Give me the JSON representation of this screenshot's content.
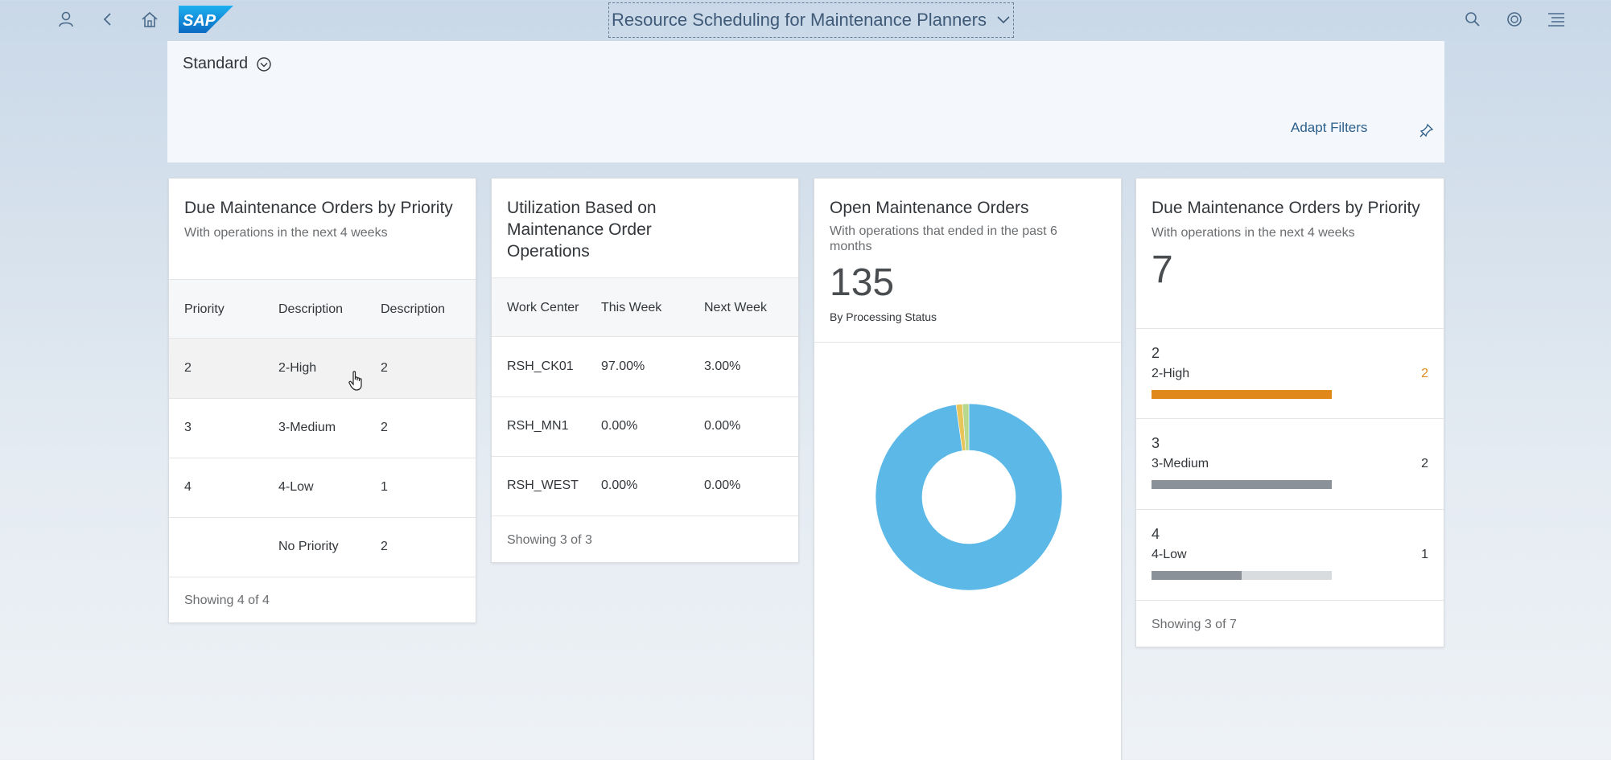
{
  "shell": {
    "title": "Resource Scheduling for Maintenance Planners",
    "logo_text": "SAP",
    "icons": [
      "user-icon",
      "back-icon",
      "home-icon",
      "search-icon",
      "notifications-icon",
      "menu-icon"
    ]
  },
  "filterbar": {
    "variant": "Standard",
    "adapt_filters": "Adapt Filters"
  },
  "card1": {
    "title": "Due Maintenance Orders by Priority",
    "subtitle": "With operations in the next 4 weeks",
    "columns": [
      "Priority",
      "Description",
      "Description"
    ],
    "rows": [
      {
        "priority": "2",
        "description": "2-High",
        "count": "2"
      },
      {
        "priority": "3",
        "description": "3-Medium",
        "count": "2"
      },
      {
        "priority": "4",
        "description": "4-Low",
        "count": "1"
      },
      {
        "priority": "",
        "description": "No Priority",
        "count": "2"
      }
    ],
    "footer": "Showing 4 of 4"
  },
  "card2": {
    "title": "Utilization Based on Maintenance Order Operations",
    "columns": [
      "Work Center",
      "This Week",
      "Next Week"
    ],
    "rows": [
      {
        "center": "RSH_CK01",
        "this_week": "97.00%",
        "next_week": "3.00%"
      },
      {
        "center": "RSH_MN1",
        "this_week": "0.00%",
        "next_week": "0.00%"
      },
      {
        "center": "RSH_WEST",
        "this_week": "0.00%",
        "next_week": "0.00%"
      }
    ],
    "footer": "Showing 3 of 3"
  },
  "card3": {
    "title": "Open Maintenance Orders",
    "subtitle": "With operations that ended in the past 6 months",
    "kpi": "135",
    "kpi_label": "By Processing Status",
    "chart_data": {
      "type": "pie",
      "values": [
        97.8,
        1.1,
        1.1
      ],
      "colors": [
        "#5cb8e6",
        "#e8c55a",
        "#b6d98f"
      ]
    }
  },
  "card4": {
    "title": "Due Maintenance Orders by Priority",
    "subtitle": "With operations in the next 4 weeks",
    "kpi": "7",
    "items": [
      {
        "priority": "2",
        "label": "2-High",
        "value": "2",
        "fraction": 1.0,
        "color": "#e0891a",
        "value_color": "#e0891a"
      },
      {
        "priority": "3",
        "label": "3-Medium",
        "value": "2",
        "fraction": 1.0,
        "color": "#8a9198",
        "value_color": "#32363a"
      },
      {
        "priority": "4",
        "label": "4-Low",
        "value": "1",
        "fraction": 0.5,
        "color": "#8a9198",
        "value_color": "#32363a"
      }
    ],
    "footer": "Showing 3 of 7"
  }
}
